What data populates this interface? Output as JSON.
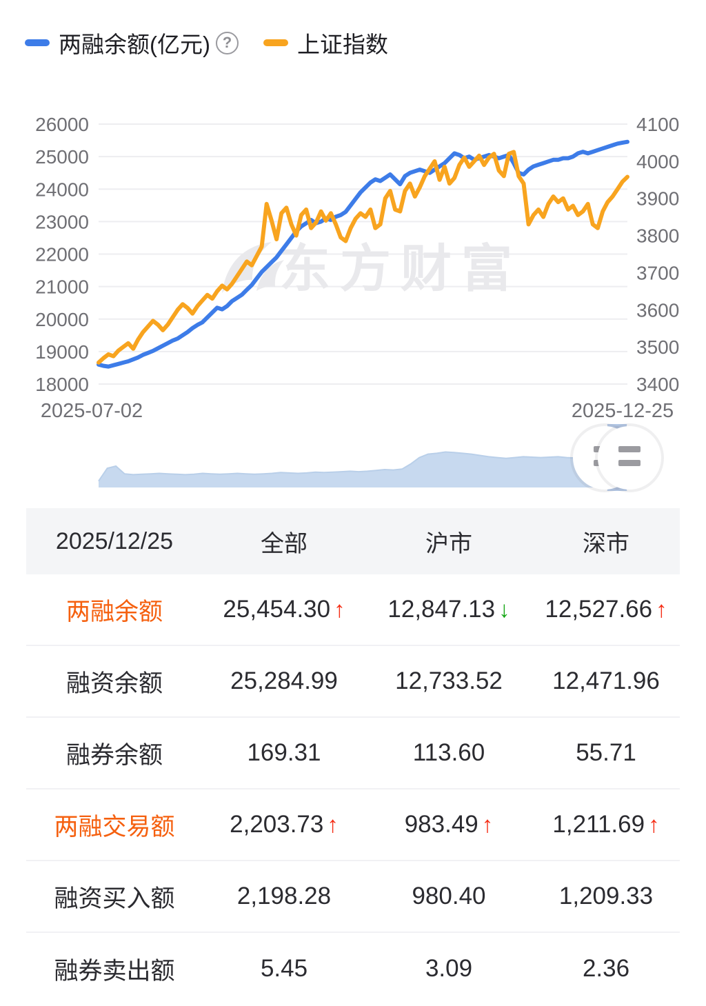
{
  "legend": {
    "series1_label": "两融余额(亿元)",
    "series2_label": "上证指数",
    "help_glyph": "?",
    "series1_color": "#3d7ce8",
    "series2_color": "#f8a41f"
  },
  "chart_data": {
    "type": "line",
    "x_labels": [
      "2025-07-02",
      "2025-12-25"
    ],
    "watermark": "东方财富",
    "left_axis": {
      "label": "两融余额(亿元)",
      "min": 18000,
      "max": 26000,
      "ticks": [
        26000,
        25000,
        24000,
        23000,
        22000,
        21000,
        20000,
        19000,
        18000
      ]
    },
    "right_axis": {
      "label": "上证指数",
      "min": 3400,
      "max": 4100,
      "ticks": [
        4100,
        4000,
        3900,
        3800,
        3700,
        3600,
        3500,
        3400
      ]
    },
    "series": [
      {
        "name": "两融余额(亿元)",
        "axis": "left",
        "color": "#3d7ce8",
        "values": [
          18600,
          18560,
          18540,
          18580,
          18620,
          18660,
          18700,
          18760,
          18820,
          18900,
          18960,
          19020,
          19100,
          19180,
          19260,
          19340,
          19400,
          19500,
          19600,
          19720,
          19820,
          19900,
          20050,
          20200,
          20350,
          20300,
          20400,
          20550,
          20650,
          20750,
          20900,
          21050,
          21250,
          21450,
          21600,
          21750,
          21900,
          22100,
          22300,
          22500,
          22700,
          22850,
          22950,
          23050,
          22950,
          23000,
          23100,
          23050,
          23150,
          23200,
          23300,
          23500,
          23700,
          23900,
          24050,
          24200,
          24300,
          24250,
          24350,
          24450,
          24300,
          24150,
          24400,
          24500,
          24550,
          24600,
          24550,
          24500,
          24600,
          24700,
          24800,
          24950,
          25100,
          25050,
          24950,
          25000,
          24900,
          24950,
          25000,
          25050,
          25000,
          24950,
          25000,
          25050,
          24800,
          24500,
          24450,
          24600,
          24700,
          24750,
          24800,
          24850,
          24900,
          24900,
          24950,
          24950,
          25000,
          25100,
          25150,
          25100,
          25150,
          25200,
          25250,
          25300,
          25350,
          25400,
          25430,
          25454
        ]
      },
      {
        "name": "上证指数",
        "axis": "right",
        "color": "#f8a41f",
        "values": [
          3458,
          3470,
          3480,
          3475,
          3490,
          3500,
          3510,
          3495,
          3520,
          3540,
          3555,
          3570,
          3560,
          3545,
          3560,
          3580,
          3600,
          3615,
          3605,
          3590,
          3610,
          3625,
          3640,
          3630,
          3650,
          3665,
          3655,
          3670,
          3690,
          3710,
          3730,
          3720,
          3745,
          3770,
          3885,
          3840,
          3790,
          3860,
          3875,
          3830,
          3800,
          3855,
          3870,
          3820,
          3835,
          3865,
          3840,
          3860,
          3830,
          3795,
          3785,
          3820,
          3845,
          3860,
          3850,
          3870,
          3820,
          3830,
          3900,
          3920,
          3870,
          3865,
          3920,
          3940,
          3905,
          3930,
          3960,
          3980,
          4000,
          3950,
          3985,
          3940,
          3955,
          3990,
          4010,
          3985,
          4000,
          4015,
          3990,
          4010,
          4020,
          3975,
          3960,
          4020,
          4025,
          3960,
          3940,
          3830,
          3855,
          3870,
          3850,
          3885,
          3905,
          3890,
          3900,
          3870,
          3880,
          3855,
          3865,
          3885,
          3830,
          3820,
          3865,
          3890,
          3905,
          3925,
          3945,
          3958
        ]
      }
    ],
    "navigator": {
      "values": [
        15,
        45,
        50,
        32,
        30,
        31,
        32,
        33,
        32,
        31,
        30,
        31,
        33,
        32,
        31,
        32,
        33,
        32,
        31,
        32,
        33,
        35,
        34,
        33,
        34,
        36,
        35,
        36,
        37,
        38,
        37,
        38,
        40,
        42,
        41,
        43,
        55,
        70,
        78,
        80,
        83,
        82,
        80,
        78,
        75,
        72,
        70,
        68,
        70,
        72,
        71,
        70,
        71,
        72,
        70,
        69,
        68,
        65,
        70,
        82,
        92,
        97
      ]
    }
  },
  "table": {
    "header": [
      "2025/12/25",
      "全部",
      "沪市",
      "深市"
    ],
    "rows": [
      {
        "label": "两融余额",
        "highlight": true,
        "cells": [
          {
            "v": "25,454.30",
            "arrow": "up"
          },
          {
            "v": "12,847.13",
            "arrow": "down"
          },
          {
            "v": "12,527.66",
            "arrow": "up"
          }
        ]
      },
      {
        "label": "融资余额",
        "highlight": false,
        "cells": [
          {
            "v": "25,284.99"
          },
          {
            "v": "12,733.52"
          },
          {
            "v": "12,471.96"
          }
        ]
      },
      {
        "label": "融券余额",
        "highlight": false,
        "cells": [
          {
            "v": "169.31"
          },
          {
            "v": "113.60"
          },
          {
            "v": "55.71"
          }
        ]
      },
      {
        "label": "两融交易额",
        "highlight": true,
        "cells": [
          {
            "v": "2,203.73",
            "arrow": "up"
          },
          {
            "v": "983.49",
            "arrow": "up"
          },
          {
            "v": "1,211.69",
            "arrow": "up"
          }
        ]
      },
      {
        "label": "融资买入额",
        "highlight": false,
        "cells": [
          {
            "v": "2,198.28"
          },
          {
            "v": "980.40"
          },
          {
            "v": "1,209.33"
          }
        ]
      },
      {
        "label": "融券卖出额",
        "highlight": false,
        "cells": [
          {
            "v": "5.45"
          },
          {
            "v": "3.09"
          },
          {
            "v": "2.36"
          }
        ]
      }
    ]
  },
  "icons": {
    "up": "↑",
    "down": "↓"
  },
  "colors": {
    "up_red": "#f52c14",
    "down_green": "#16a616",
    "highlight_orange": "#f5600f",
    "grid": "#ededf0",
    "axis_text": "#6f6f74",
    "watermark": "#e9e9ec",
    "nav_fill": "#c7d9ef",
    "nav_edge": "#b9cfe9",
    "nav_band": "#b3c8e6",
    "grip": "#9b9ba0"
  }
}
